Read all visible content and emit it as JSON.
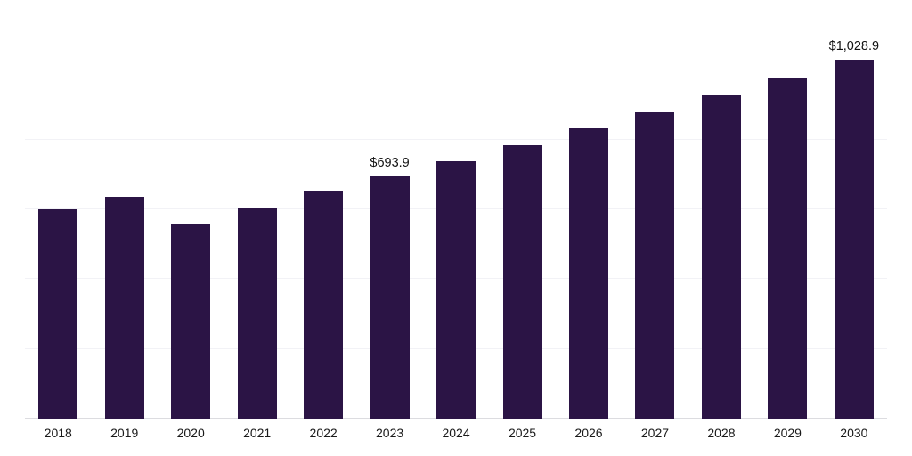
{
  "chart_data": {
    "type": "bar",
    "title": "",
    "xlabel": "",
    "ylabel": "",
    "categories": [
      "2018",
      "2019",
      "2020",
      "2021",
      "2022",
      "2023",
      "2024",
      "2025",
      "2026",
      "2027",
      "2028",
      "2029",
      "2030"
    ],
    "values": [
      601.2,
      634.8,
      556.3,
      601.5,
      652.1,
      693.9,
      737.3,
      784.8,
      831.2,
      879.5,
      928.0,
      976.6,
      1028.9
    ],
    "data_labels": [
      "",
      "",
      "",
      "",
      "",
      "$693.9",
      "",
      "",
      "",
      "",
      "",
      "",
      "$1,028.9"
    ],
    "ylim": [
      0,
      1200
    ],
    "grid": "horizontal",
    "gridline_step": 200,
    "legend": "none",
    "bar_color": "#2b1445",
    "label_color": "#111111",
    "axis_label_color": "#1a1a1a",
    "gridline_color": "#f2f2f6",
    "baseline_color": "#dcdce0"
  }
}
